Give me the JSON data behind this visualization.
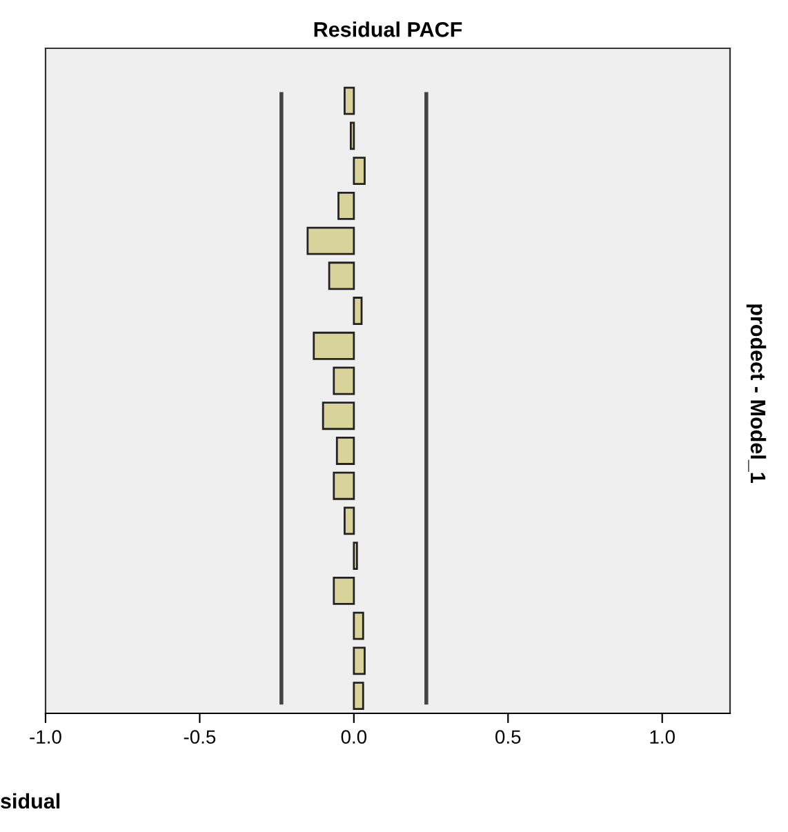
{
  "chart_data": {
    "type": "bar",
    "orientation": "horizontal",
    "title": "Residual PACF",
    "xlabel": "sidual",
    "annotations": [
      "prodect - Model_1"
    ],
    "categories": [
      null,
      null,
      null,
      null,
      null,
      null,
      null,
      null,
      null,
      null,
      null,
      null,
      null,
      null,
      null,
      null,
      null,
      null
    ],
    "values": [
      -0.03,
      -0.01,
      0.035,
      -0.05,
      -0.15,
      -0.08,
      0.025,
      -0.13,
      -0.065,
      -0.1,
      -0.055,
      -0.065,
      -0.03,
      0.01,
      -0.065,
      0.03,
      0.035,
      0.03
    ],
    "color": "#d8d39a",
    "xlim": [
      -1.0,
      1.22
    ],
    "xticks": [
      {
        "value": -1.0,
        "label": "-1.0"
      },
      {
        "value": -0.5,
        "label": "-0.5"
      },
      {
        "value": 0.0,
        "label": "0.0"
      },
      {
        "value": 0.5,
        "label": "0.5"
      },
      {
        "value": 1.0,
        "label": "1.0"
      }
    ],
    "ref_lines": [
      {
        "axis": "x",
        "value": -0.235,
        "color": "#444444"
      },
      {
        "axis": "x",
        "value": 0.235,
        "color": "#444444"
      }
    ],
    "tick_labels": "x",
    "grid": false,
    "legend": false
  }
}
